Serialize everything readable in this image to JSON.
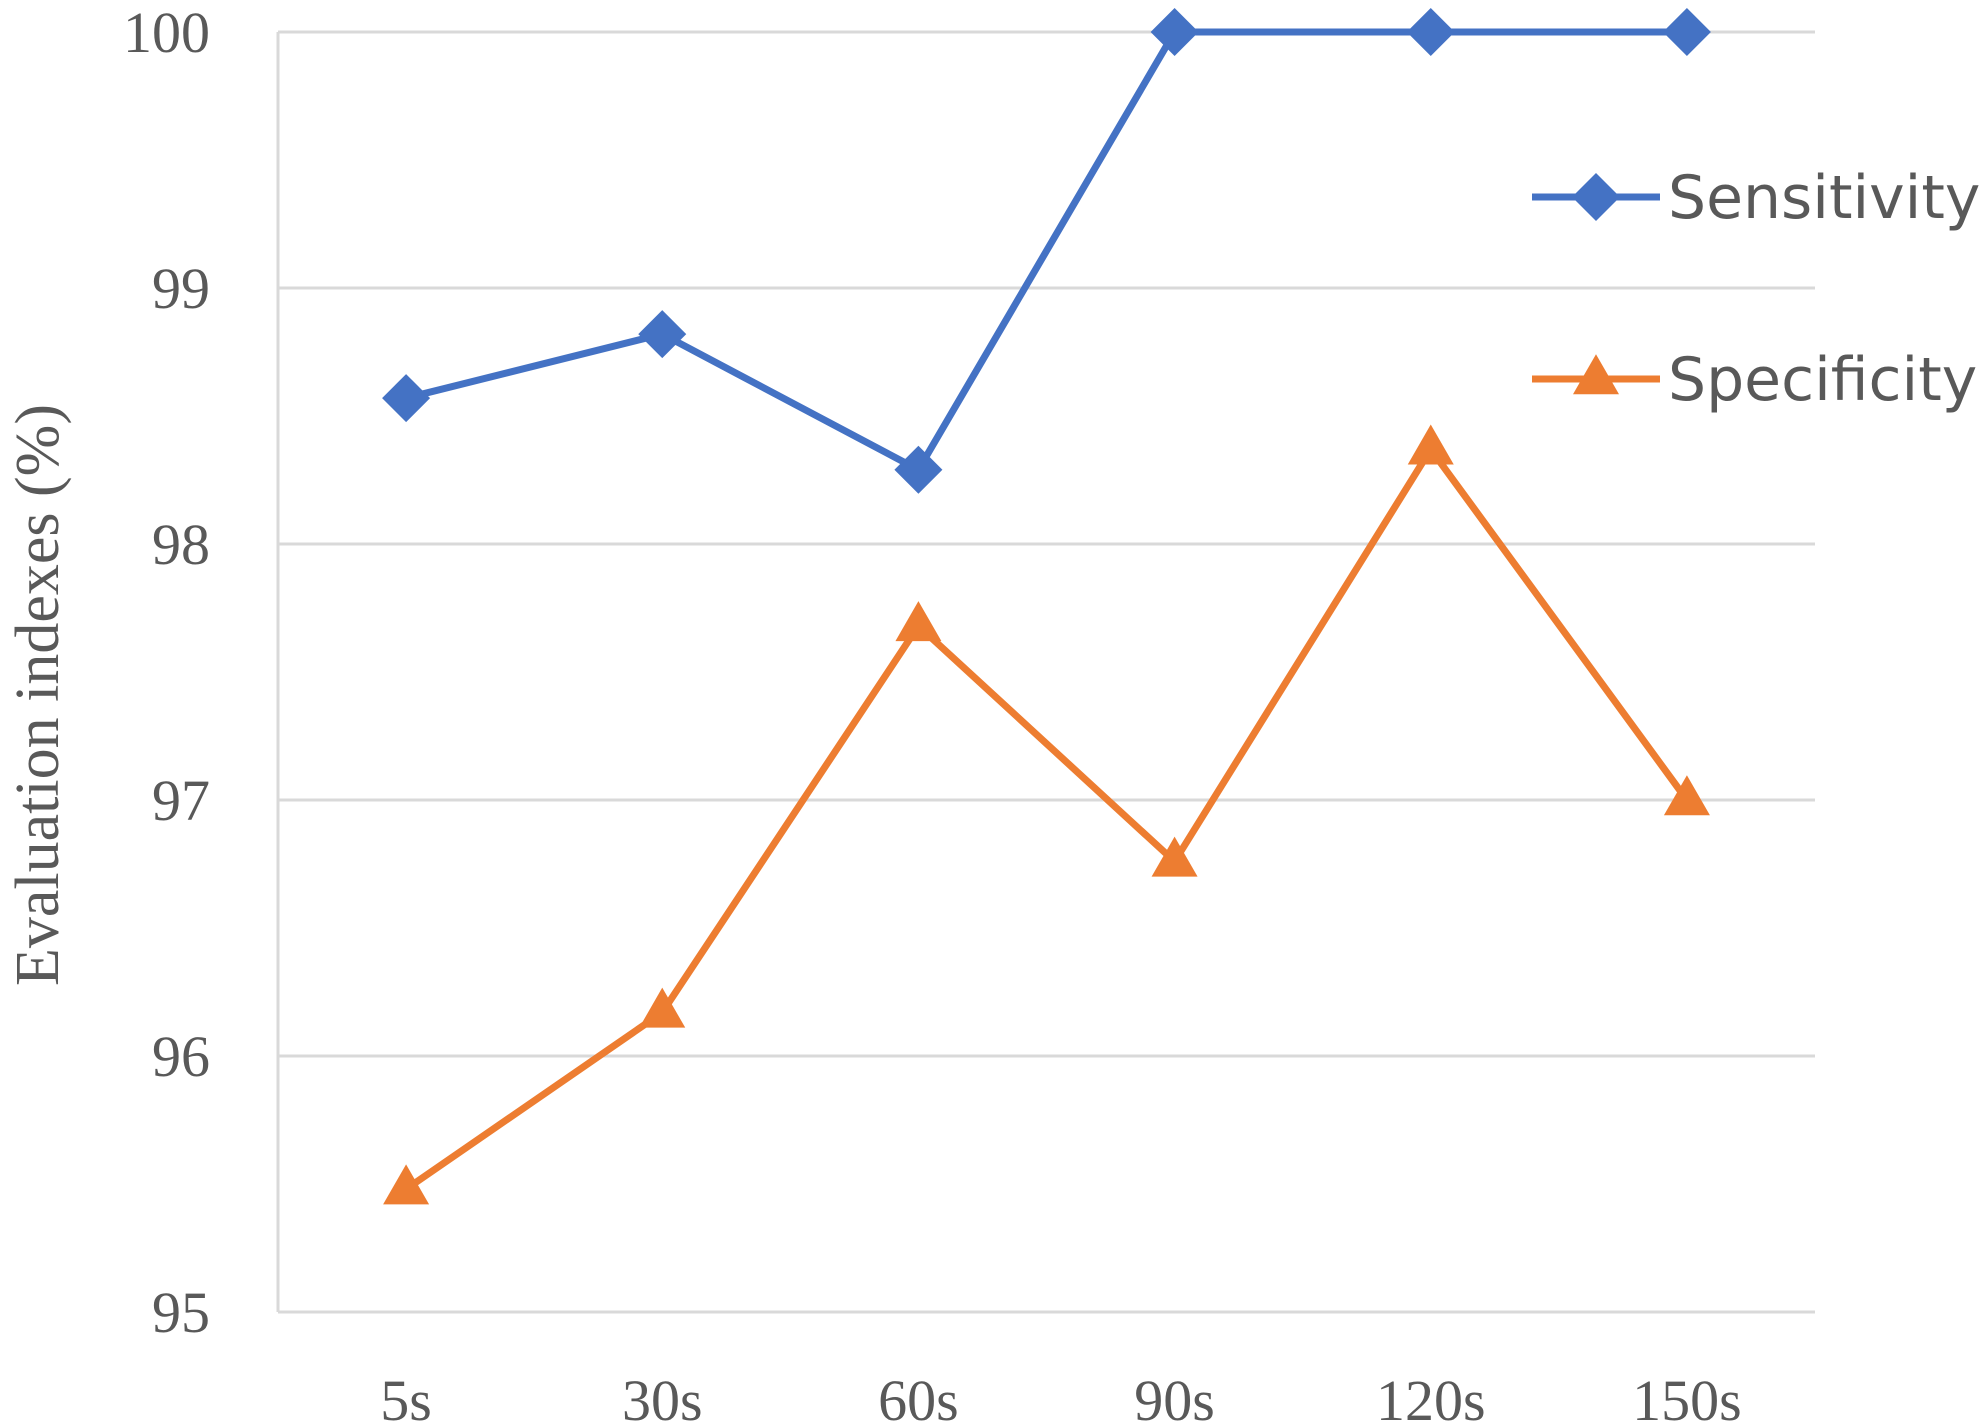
{
  "chart_data": {
    "type": "line",
    "title": "",
    "xlabel": "",
    "ylabel": "Evaluation indexes (%)",
    "categories": [
      "5s",
      "30s",
      "60s",
      "90s",
      "120s",
      "150s"
    ],
    "ylim": [
      95,
      100
    ],
    "yticks": [
      "95",
      "96",
      "97",
      "98",
      "99",
      "100"
    ],
    "grid": true,
    "legend_position": "right",
    "series": [
      {
        "name": "Sensitivity",
        "color": "#4472C4",
        "marker": "diamond",
        "values": [
          98.57,
          98.82,
          98.29,
          100,
          100,
          100
        ]
      },
      {
        "name": "Specificity",
        "color": "#ED7D31",
        "marker": "triangle",
        "values": [
          95.48,
          96.17,
          97.68,
          96.76,
          98.37,
          97.0
        ]
      }
    ]
  }
}
